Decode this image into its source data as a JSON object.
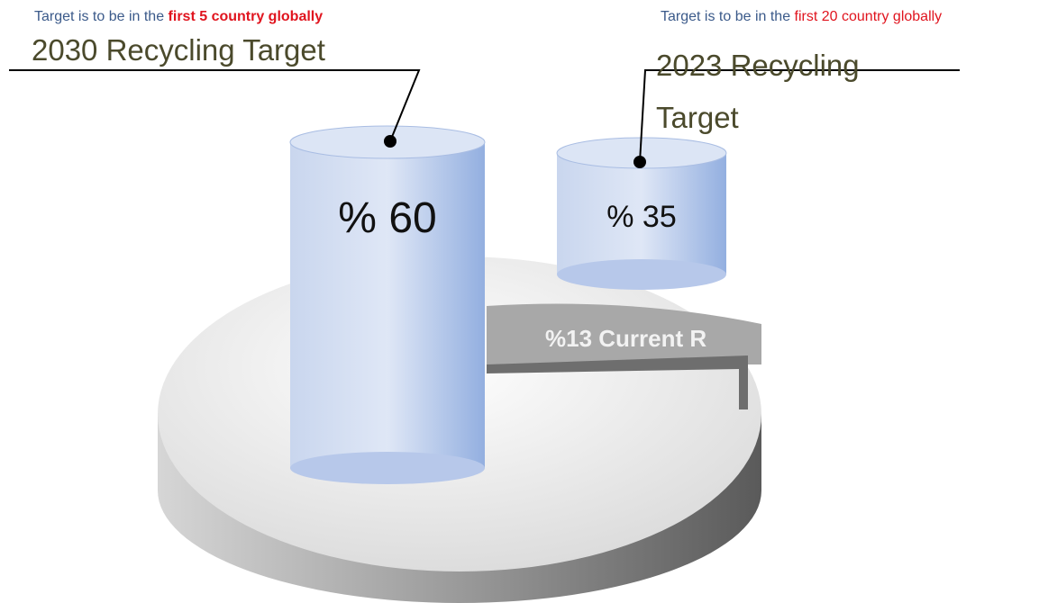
{
  "callouts": [
    {
      "note_prefix": "Target is to be in the",
      "note_highlight": "first 5 country globally",
      "title": "2030 Recycling Target",
      "value_label": "% 60"
    },
    {
      "note_prefix": "Target is to be in the",
      "note_highlight": "first 20 country globally",
      "title": "2023 Recycling Target",
      "value_label": "% 35"
    }
  ],
  "pie_label": "%13 Current R"
}
